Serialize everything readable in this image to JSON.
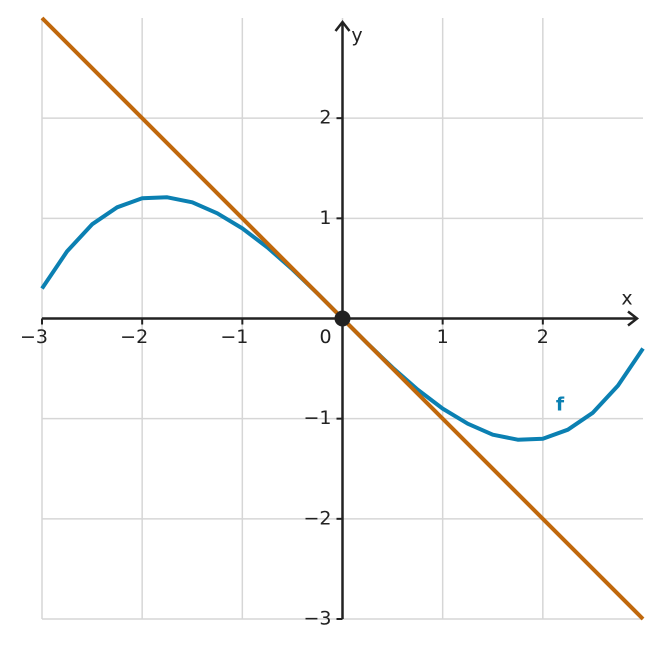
{
  "chart_data": {
    "type": "line",
    "x_label": "x",
    "y_label": "y",
    "xlim": [
      -3,
      3
    ],
    "ylim": [
      -3,
      3
    ],
    "xticks": [
      {
        "value": -3,
        "label": "−3"
      },
      {
        "value": -2,
        "label": "−2"
      },
      {
        "value": -1,
        "label": "−1"
      },
      0,
      1,
      2
    ],
    "yticks": [
      {
        "value": -3,
        "label": "−3"
      },
      {
        "value": -2,
        "label": "−2"
      },
      {
        "value": -1,
        "label": "−1"
      },
      1,
      2
    ],
    "grid": true,
    "series": [
      {
        "name": "f",
        "color": "#0b80b2",
        "x": [
          -3,
          -2.75,
          -2.5,
          -2.25,
          -2,
          -1.75,
          -1.5,
          -1.25,
          -1,
          -0.75,
          -0.5,
          -0.25,
          0,
          0.25,
          0.5,
          0.75,
          1,
          1.25,
          1.5,
          1.75,
          2,
          2.25,
          2.5,
          2.75,
          3
        ],
        "values": [
          0.3,
          0.67,
          0.94,
          1.11,
          1.2,
          1.21,
          1.16,
          1.05,
          0.9,
          0.71,
          0.49,
          0.25,
          0,
          -0.25,
          -0.49,
          -0.71,
          -0.9,
          -1.05,
          -1.16,
          -1.21,
          -1.2,
          -1.11,
          -0.94,
          -0.67,
          -0.3
        ]
      },
      {
        "color": "#c0680c",
        "x": [
          -3,
          3
        ],
        "values": [
          3,
          -3
        ]
      },
      {
        "color": "#222222",
        "x": [
          0
        ],
        "values": [
          0
        ],
        "marker": "point"
      }
    ]
  }
}
